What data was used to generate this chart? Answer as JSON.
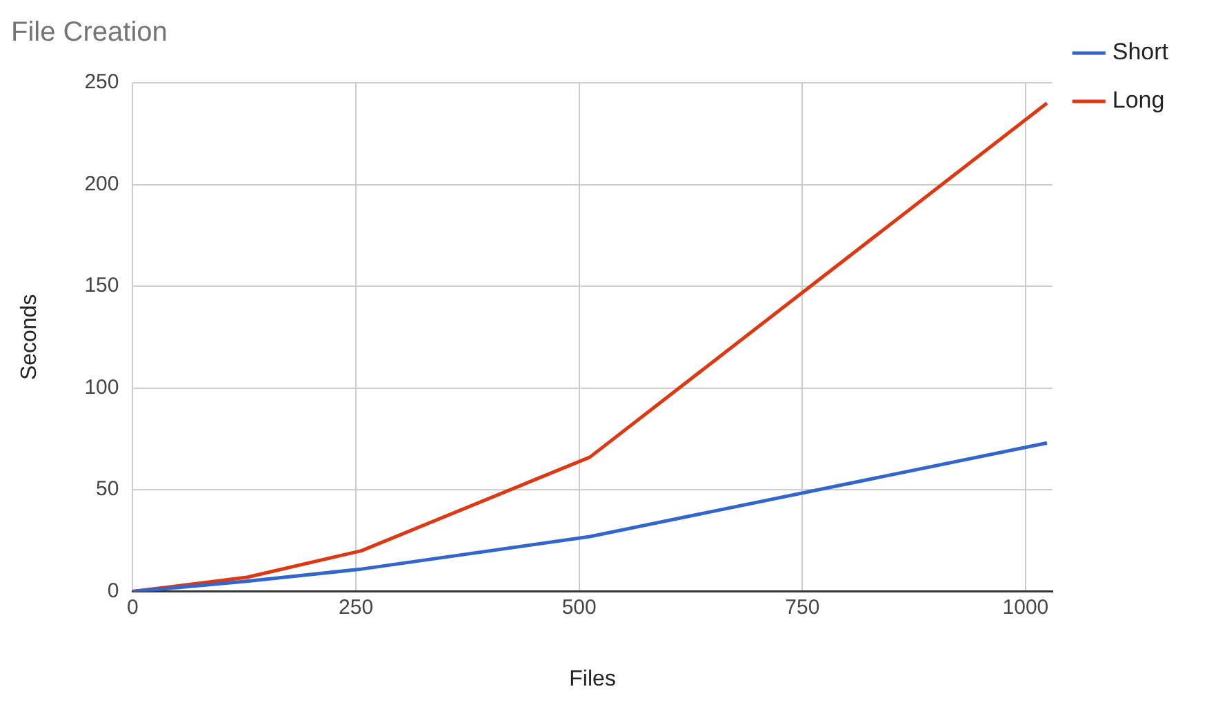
{
  "chart_data": {
    "type": "line",
    "title": "File Creation",
    "xlabel": "Files",
    "ylabel": "Seconds",
    "x": [
      0,
      128,
      256,
      512,
      1024
    ],
    "series": [
      {
        "name": "Short",
        "color": "#3366cc",
        "values": [
          0,
          5,
          11,
          27,
          73
        ]
      },
      {
        "name": "Long",
        "color": "#dc3912",
        "values": [
          0,
          7,
          20,
          66,
          240
        ]
      }
    ],
    "xlim": [
      0,
      1030
    ],
    "xticks": [
      0,
      250,
      500,
      750,
      1000
    ],
    "ylim": [
      0,
      250
    ],
    "yticks": [
      0,
      50,
      100,
      150,
      200,
      250
    ],
    "grid": true,
    "legend": "top right",
    "marker": "none",
    "line_style": "solid"
  }
}
